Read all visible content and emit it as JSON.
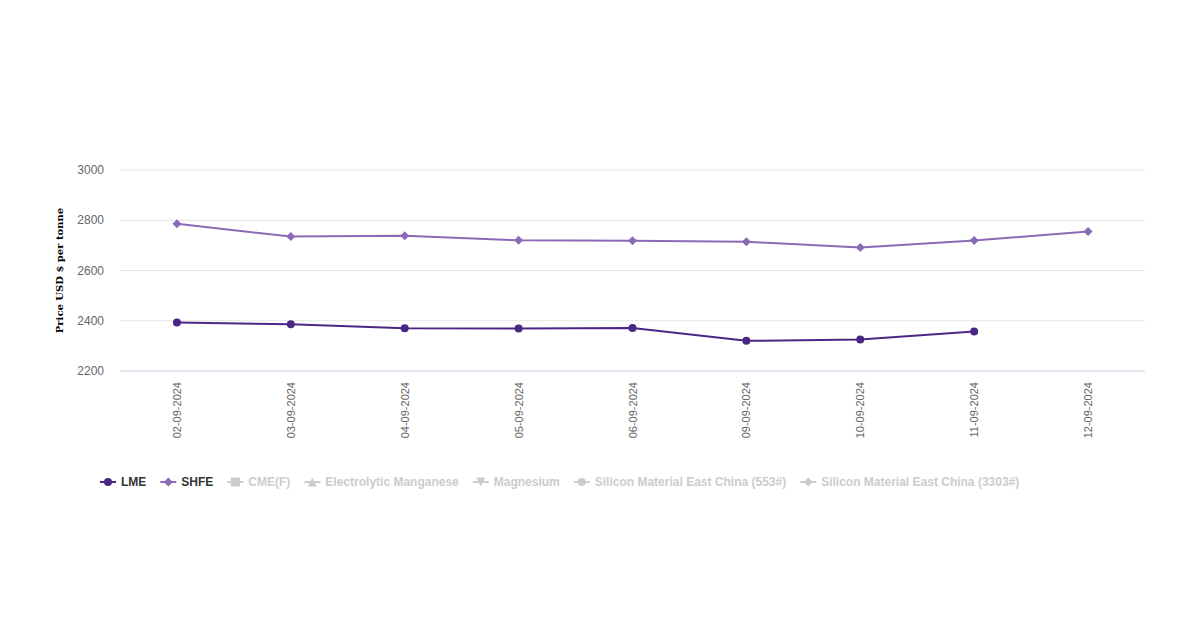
{
  "chart_data": {
    "type": "line",
    "y_label": "Price USD $ per tonne",
    "categories": [
      "02-09-2024",
      "03-09-2024",
      "04-09-2024",
      "05-09-2024",
      "06-09-2024",
      "09-09-2024",
      "10-09-2024",
      "11-09-2024",
      "12-09-2024"
    ],
    "series": [
      {
        "name": "LME",
        "color": "#4b2785",
        "marker": "circle",
        "values": [
          2393,
          2386,
          2370,
          2369,
          2371,
          2320,
          2325,
          2357,
          null
        ]
      },
      {
        "name": "SHFE",
        "color": "#8a6ab5",
        "marker": "diamond",
        "values": [
          2786,
          2735,
          2738,
          2720,
          2718,
          2714,
          2692,
          2719,
          2755
        ]
      },
      {
        "name": "CME(F)",
        "color": "#cccccc",
        "marker": "square",
        "values": [
          null,
          null,
          null,
          null,
          null,
          null,
          null,
          null,
          null
        ]
      },
      {
        "name": "Electrolytic Manganese",
        "color": "#cccccc",
        "marker": "triangle",
        "values": [
          null,
          null,
          null,
          null,
          null,
          null,
          null,
          null,
          null
        ]
      },
      {
        "name": "Magnesium",
        "color": "#cccccc",
        "marker": "triangle-down",
        "values": [
          null,
          null,
          null,
          null,
          null,
          null,
          null,
          null,
          null
        ]
      },
      {
        "name": "Silicon Material East China (553#)",
        "color": "#cccccc",
        "marker": "circle",
        "values": [
          null,
          null,
          null,
          null,
          null,
          null,
          null,
          null,
          null
        ]
      },
      {
        "name": "Silicon Material East China (3303#)",
        "color": "#cccccc",
        "marker": "diamond",
        "values": [
          null,
          null,
          null,
          null,
          null,
          null,
          null,
          null,
          null
        ]
      }
    ],
    "ylim": [
      2200,
      3000
    ],
    "yticks": [
      2200,
      2400,
      2600,
      2800,
      3000
    ],
    "grid": true,
    "legend": "bottom"
  }
}
